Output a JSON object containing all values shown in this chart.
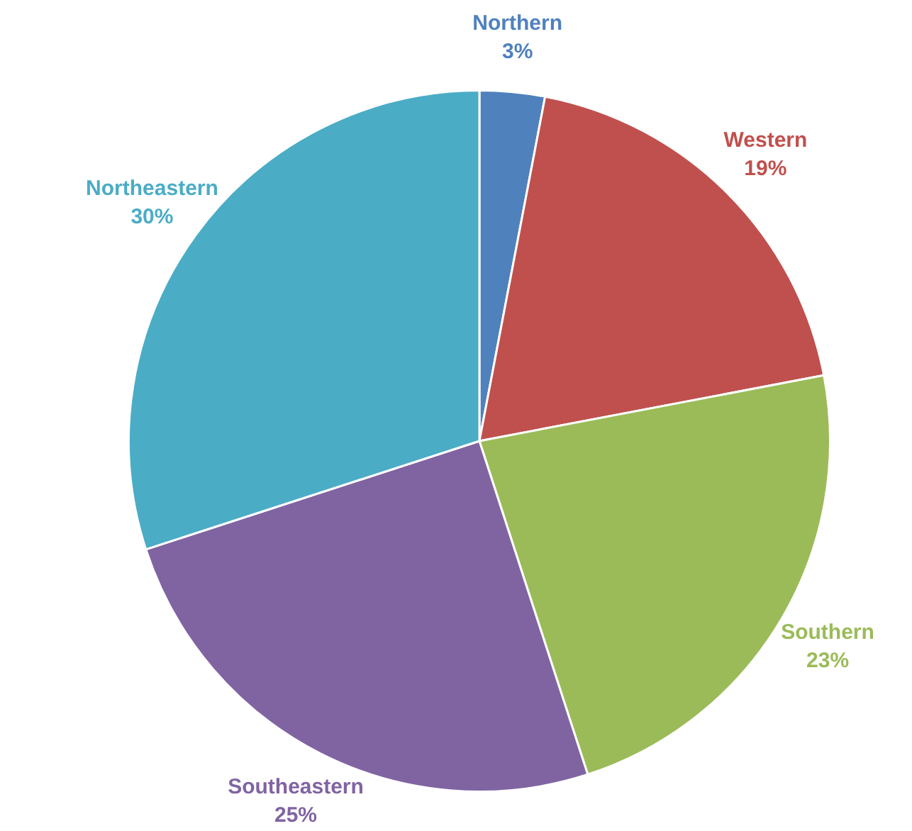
{
  "chart_data": {
    "type": "pie",
    "categories": [
      "Northern",
      "Western",
      "Southern",
      "Southeastern",
      "Northeastern"
    ],
    "values": [
      3,
      19,
      23,
      25,
      30
    ],
    "colors": [
      "#4f81bd",
      "#c0504d",
      "#9bbb59",
      "#8064a2",
      "#4bacc6"
    ],
    "value_labels": [
      "3%",
      "19%",
      "23%",
      "25%",
      "30%"
    ],
    "legend": false
  }
}
